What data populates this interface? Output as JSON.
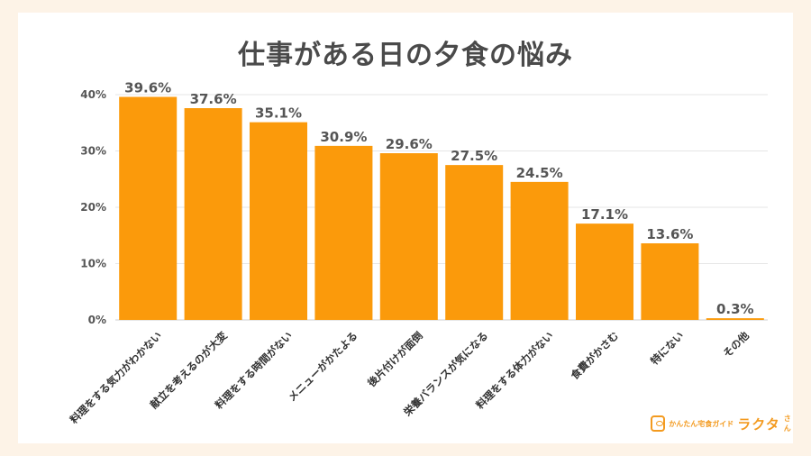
{
  "chart_data": {
    "type": "bar",
    "title": "仕事がある日の夕食の悩み",
    "categories": [
      "料理をする気力がわかない",
      "献立を考えるのが大変",
      "料理をする時間がない",
      "メニューがかたよる",
      "後片付けが面倒",
      "栄養バランスが気になる",
      "料理をする体力がない",
      "食費がかさむ",
      "特にない",
      "その他"
    ],
    "values": [
      39.6,
      37.6,
      35.1,
      30.9,
      29.6,
      27.5,
      24.5,
      17.1,
      13.6,
      0.3
    ],
    "value_labels": [
      "39.6%",
      "37.6%",
      "35.1%",
      "30.9%",
      "29.6%",
      "27.5%",
      "24.5%",
      "17.1%",
      "13.6%",
      "0.3%"
    ],
    "yticks": [
      0,
      10,
      20,
      30,
      40
    ],
    "ytick_labels": [
      "0%",
      "10%",
      "20%",
      "30%",
      "40%"
    ],
    "ylim": [
      0,
      40
    ],
    "grid": true,
    "bar_color": "#fb9a0b",
    "xlabel": "",
    "ylabel": ""
  },
  "brand": {
    "tagline": "かんたん宅食ガイド",
    "name": "ラクタ",
    "suffix": "さん",
    "icon": "plate-logo-icon"
  }
}
